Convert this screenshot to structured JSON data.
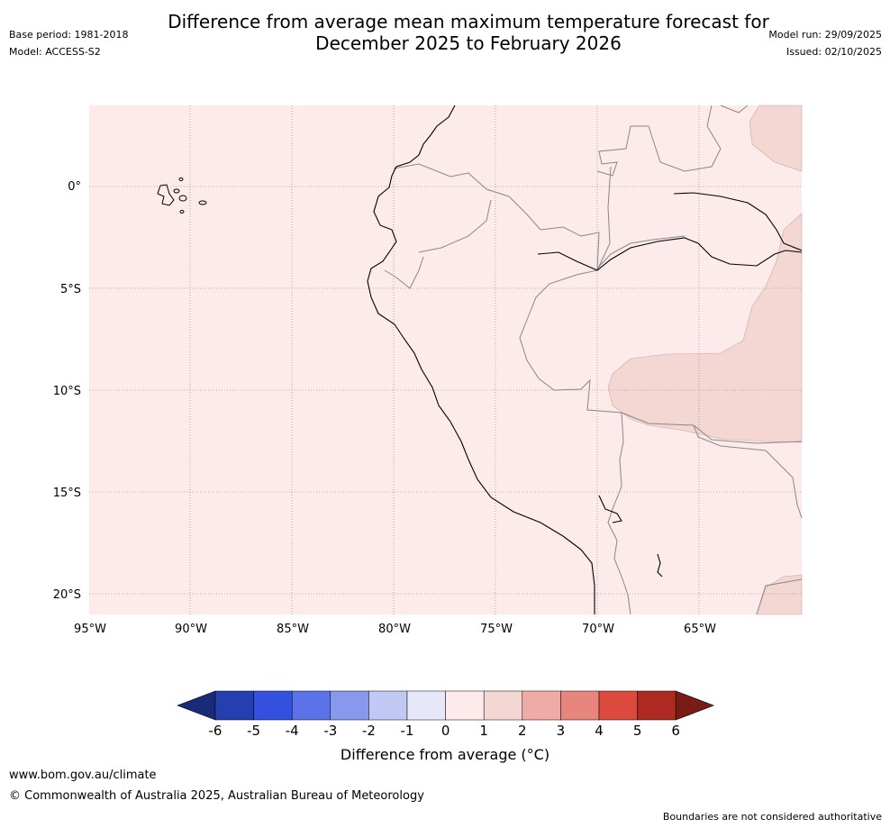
{
  "title_line1": "Difference from average mean maximum temperature forecast for",
  "title_line2": "December 2025 to February 2026",
  "base_period": "Base period: 1981-2018",
  "model": "Model: ACCESS-S2",
  "model_run": "Model run: 29/09/2025",
  "issued": "Issued: 02/10/2025",
  "lat_labels": [
    "0°",
    "5°S",
    "10°S",
    "15°S",
    "20°S"
  ],
  "lon_labels": [
    "95°W",
    "90°W",
    "85°W",
    "80°W",
    "75°W",
    "70°W",
    "65°W"
  ],
  "colorbar": {
    "label": "Difference from average ($^\\circ$C)",
    "label_display": "Difference from average (°C)",
    "ticks": [
      "-6",
      "-5",
      "-4",
      "-3",
      "-2",
      "-1",
      "0",
      "1",
      "2",
      "3",
      "4",
      "5",
      "6"
    ],
    "colors": [
      "#1b2a78",
      "#2440b0",
      "#3350e0",
      "#5b72e8",
      "#8898ec",
      "#c2c8f4",
      "#e6e8fa",
      "#fcebea",
      "#f4d6d3",
      "#efaca7",
      "#e8857d",
      "#dc4a3d",
      "#ad2a22",
      "#7a1c16"
    ]
  },
  "legend_categories": [
    {
      "range": "0 to 1",
      "color": "#fcebea"
    },
    {
      "range": "1 to 2",
      "color": "#f4d6d3"
    }
  ],
  "footer_link": "www.bom.gov.au/climate",
  "footer_copy": "© Commonwealth of Australia 2025, Australian Bureau of Meteorology",
  "footer_note": "Boundaries are not considered authoritative"
}
